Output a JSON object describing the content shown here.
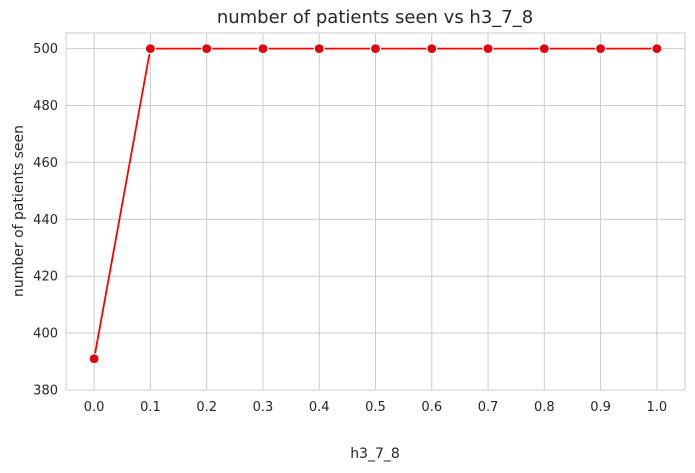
{
  "chart_data": {
    "type": "line",
    "title": "number of patients seen vs h3_7_8",
    "xlabel": "h3_7_8",
    "ylabel": "number of patients seen",
    "x": [
      0.0,
      0.1,
      0.2,
      0.3,
      0.4,
      0.5,
      0.6,
      0.7,
      0.8,
      0.9,
      1.0
    ],
    "x_tick_labels": [
      "0.0",
      "0.1",
      "0.2",
      "0.3",
      "0.4",
      "0.5",
      "0.6",
      "0.7",
      "0.8",
      "0.9",
      "1.0"
    ],
    "y_ticks": [
      380,
      400,
      420,
      440,
      460,
      480,
      500
    ],
    "y_tick_labels": [
      "380",
      "400",
      "420",
      "440",
      "460",
      "480",
      "500"
    ],
    "series": [
      {
        "values": [
          391,
          500,
          500,
          500,
          500,
          500,
          500,
          500,
          500,
          500,
          500
        ]
      }
    ],
    "xlim": [
      -0.05,
      1.05
    ],
    "ylim": [
      380,
      505.5
    ],
    "grid": true,
    "colors": {
      "line": "#ff0000",
      "marker": "#e3000f"
    }
  }
}
